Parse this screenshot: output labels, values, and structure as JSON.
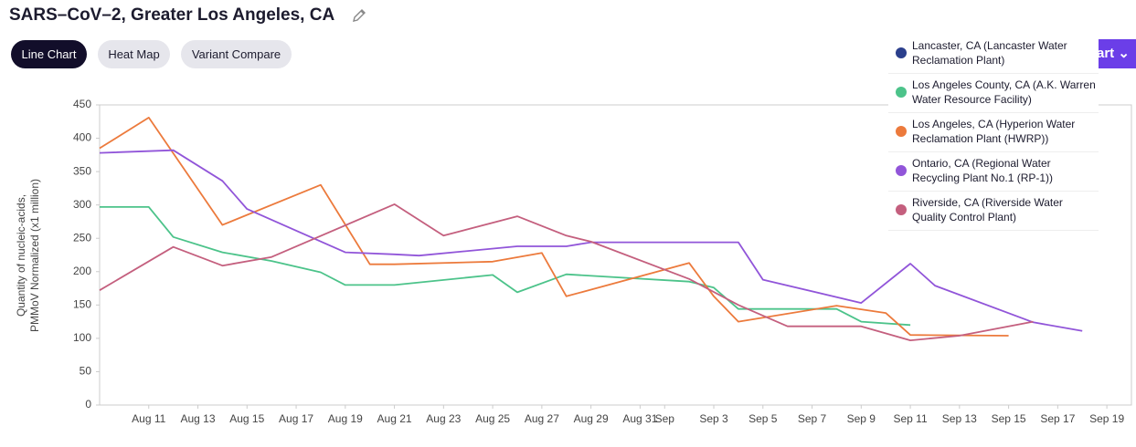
{
  "header": {
    "title": "SARS–CoV–2, Greater Los Angeles, CA"
  },
  "tabs": [
    "Line Chart",
    "Heat Map",
    "Variant Compare"
  ],
  "button": "Chart",
  "chart_data": {
    "type": "line",
    "ylabel": [
      "Quantity of nucleic-acids,",
      "PMMoV Normalized (x1 million)"
    ],
    "xlim": [
      "Aug 9",
      "Sep 20"
    ],
    "xticks": [
      "Aug 11",
      "Aug 13",
      "Aug 15",
      "Aug 17",
      "Aug 19",
      "Aug 21",
      "Aug 23",
      "Aug 25",
      "Aug 27",
      "Aug 29",
      "Aug 31",
      {
        "value": "Sep 1",
        "label": "Sep"
      },
      "Sep 3",
      "Sep 5",
      "Sep 7",
      "Sep 9",
      "Sep 11",
      "Sep 13",
      "Sep 15",
      "Sep 17",
      "Sep 19"
    ],
    "ylim": [
      0,
      450
    ],
    "yticks": [
      0,
      50,
      100,
      150,
      200,
      250,
      300,
      350,
      400,
      450
    ],
    "series": [
      {
        "name": "Lancaster, CA (Lancaster Water Reclamation Plant)",
        "color": "#2b3f8c",
        "x": [],
        "values": []
      },
      {
        "name": "Los Angeles County, CA (A.K. Warren Water Resource Facility)",
        "color": "#4cc38a",
        "x": [
          "Aug 9",
          "Aug 11",
          "Aug 12",
          "Aug 14",
          "Aug 16",
          "Aug 18",
          "Aug 19",
          "Aug 21",
          "Aug 25",
          "Aug 26",
          "Aug 28",
          "Sep 2",
          "Sep 3",
          "Sep 4",
          "Sep 8",
          "Sep 9",
          "Sep 11"
        ],
        "values": [
          297,
          297,
          252,
          229,
          216,
          199,
          180,
          180,
          195,
          169,
          196,
          185,
          176,
          144,
          144,
          125,
          120
        ]
      },
      {
        "name": "Los Angeles, CA (Hyperion Water Reclamation Plant (HWRP))",
        "color": "#ec7a3c",
        "x": [
          "Aug 9",
          "Aug 11",
          "Aug 14",
          "Aug 18",
          "Aug 20",
          "Aug 21",
          "Aug 25",
          "Aug 27",
          "Aug 28",
          "Sep 2",
          "Sep 3",
          "Sep 4",
          "Sep 8",
          "Sep 10",
          "Sep 11",
          "Sep 15"
        ],
        "values": [
          385,
          431,
          270,
          330,
          211,
          211,
          215,
          228,
          163,
          213,
          163,
          125,
          149,
          138,
          105,
          104
        ]
      },
      {
        "name": "Ontario, CA (Regional Water Recycling Plant No.1 (RP-1))",
        "color": "#9155d9",
        "x": [
          "Aug 9",
          "Aug 12",
          "Aug 14",
          "Aug 15",
          "Aug 19",
          "Aug 21",
          "Aug 22",
          "Aug 26",
          "Aug 28",
          "Aug 29",
          "Sep 4",
          "Sep 5",
          "Sep 9",
          "Sep 11",
          "Sep 12",
          "Sep 16",
          "Sep 18"
        ],
        "values": [
          378,
          382,
          336,
          294,
          229,
          226,
          224,
          238,
          238,
          244,
          244,
          188,
          153,
          212,
          179,
          124,
          111
        ]
      },
      {
        "name": "Riverside, CA (Riverside Water Quality Control Plant)",
        "color": "#c45f7e",
        "x": [
          "Aug 9",
          "Aug 12",
          "Aug 14",
          "Aug 16",
          "Aug 21",
          "Aug 23",
          "Aug 26",
          "Aug 28",
          "Aug 29",
          "Sep 2",
          "Sep 4",
          "Sep 6",
          "Sep 9",
          "Sep 11",
          "Sep 13",
          "Sep 16"
        ],
        "values": [
          172,
          237,
          209,
          222,
          301,
          254,
          283,
          254,
          245,
          189,
          150,
          118,
          118,
          97,
          104,
          125
        ]
      }
    ]
  }
}
